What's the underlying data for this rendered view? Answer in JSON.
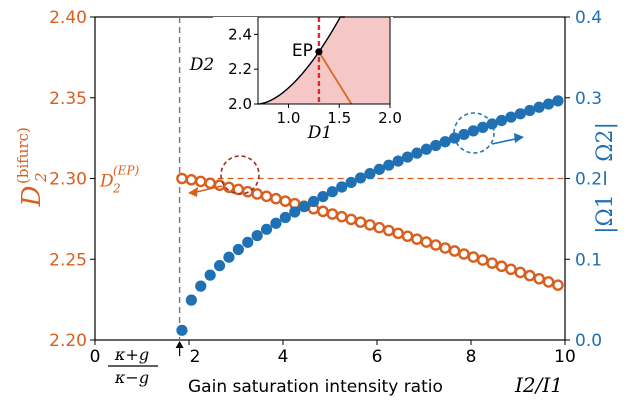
{
  "colors": {
    "left": "#d95f1e",
    "right": "#2070b4",
    "ep_line": "#dd2b2b",
    "inset_fill": "#f5c7c7",
    "inset_line": "#000000",
    "inset_orange": "#d96a1f",
    "circle_left": "#9b2f1e",
    "circle_right": "#2077b4"
  },
  "chart_data": {
    "type": "scatter",
    "xlabel": "Gain saturation intensity ratio",
    "xlabel_math": "I2/I1",
    "ylabel_left": "D2(bifurc)",
    "ylabel_right": "|Ω1 − Ω2|",
    "xlim": [
      0,
      10
    ],
    "ylim_left": [
      2.2,
      2.4
    ],
    "ylim_right": [
      0,
      0.4
    ],
    "x_ticks": [
      "0",
      "2",
      "4",
      "6",
      "8",
      "10"
    ],
    "y_left_ticks": [
      "2.20",
      "2.25",
      "2.30",
      "2.35",
      "2.40"
    ],
    "y_right_ticks": [
      "0.0",
      "0.1",
      "0.2",
      "0.3",
      "0.4"
    ],
    "threshold_x": 1.8,
    "threshold_label": "κ+g / κ−g",
    "ep_level": 2.3,
    "ep_level_label": "D2(EP)",
    "series": [
      {
        "axis": "left",
        "marker": "open-circle",
        "x_start": 1.85,
        "x_step": 0.2,
        "n": 42,
        "y_start": 2.3,
        "y_end": 2.232,
        "curvature": 1.2
      },
      {
        "axis": "right",
        "marker": "filled-circle",
        "x_start": 1.85,
        "x_step": 0.2,
        "n": 42,
        "y_start": 0.012,
        "y_end": 0.3,
        "exponent": 0.55
      }
    ],
    "inset": {
      "xlabel": "D1",
      "ylabel": "D2",
      "xlim": [
        0.7,
        2.0
      ],
      "ylim": [
        2.0,
        2.5
      ],
      "x_ticks": [
        "1.0",
        "1.5",
        "2.0"
      ],
      "y_ticks": [
        "2.0",
        "2.2",
        "2.4"
      ],
      "ep_label": "EP",
      "ep_point": [
        1.3,
        2.3
      ]
    }
  }
}
